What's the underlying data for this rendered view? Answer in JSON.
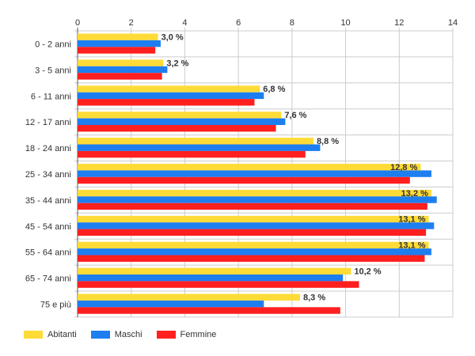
{
  "chart_data": {
    "type": "bar",
    "orientation": "horizontal",
    "title": "",
    "xlabel": "",
    "ylabel": "",
    "xlim": [
      0,
      14
    ],
    "x_ticks": [
      0,
      2,
      4,
      6,
      8,
      10,
      12,
      14
    ],
    "x_tick_labels": [
      "0",
      "2",
      "4",
      "6",
      "8",
      "10",
      "12",
      "14"
    ],
    "grid": true,
    "legend_position": "bottom-left",
    "categories": [
      "0 - 2 anni",
      "3 - 5 anni",
      "6 - 11 anni",
      "12 - 17 anni",
      "18 - 24 anni",
      "25 - 34 anni",
      "35 - 44 anni",
      "45 - 54 anni",
      "55 - 64 anni",
      "65 - 74 anni",
      "75 e più"
    ],
    "series": [
      {
        "name": "Abitanti",
        "color": "#ffdb38",
        "values": [
          3.0,
          3.2,
          6.8,
          7.6,
          8.8,
          12.8,
          13.2,
          13.1,
          13.1,
          10.2,
          8.3
        ]
      },
      {
        "name": "Maschi",
        "color": "#1e7ef0",
        "values": [
          3.1,
          3.35,
          6.95,
          7.75,
          9.05,
          13.2,
          13.4,
          13.3,
          13.2,
          9.9,
          6.95
        ]
      },
      {
        "name": "Femmine",
        "color": "#ff1f1f",
        "values": [
          2.9,
          3.15,
          6.6,
          7.4,
          8.5,
          12.4,
          13.05,
          13.0,
          12.95,
          10.5,
          9.8
        ]
      }
    ],
    "data_labels": [
      "3,0 %",
      "3,2 %",
      "6,8 %",
      "7,6 %",
      "8,8 %",
      "12,8 %",
      "13,2 %",
      "13,1 %",
      "13,1 %",
      "10,2 %",
      "8,3 %"
    ]
  }
}
